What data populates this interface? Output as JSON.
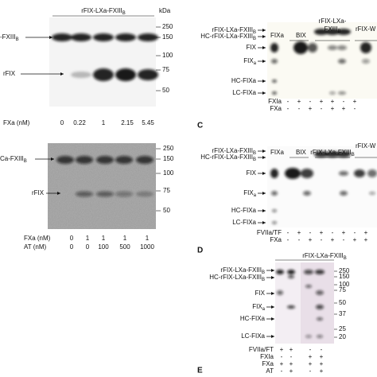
{
  "panel_a": {
    "title": {
      "text": "rFIX-LXa-FXIII",
      "sub": "B"
    },
    "unit": "kDa",
    "markers": [
      "250",
      "150",
      "100",
      "75",
      "50"
    ],
    "bands": [
      {
        "text": "-FXIII",
        "sub": "B"
      },
      {
        "text": "rFIX"
      }
    ],
    "rows": [
      {
        "label": "FXa (nM)",
        "values": [
          "0",
          "0.22",
          "1",
          "2.15",
          "5.45"
        ]
      }
    ]
  },
  "panel_b": {
    "markers": [
      "250",
      "150",
      "100",
      "75",
      "50"
    ],
    "bands": [
      {
        "text": "Ca-FXIII",
        "sub": "B"
      },
      {
        "text": "rFIX"
      }
    ],
    "rows": [
      {
        "label": "FXa (nM)",
        "values": [
          "0",
          "1",
          "1",
          "1",
          "1"
        ]
      },
      {
        "label": "AT (nM)",
        "values": [
          "0",
          "0",
          "100",
          "500",
          "1000"
        ]
      }
    ]
  },
  "panel_c": {
    "columns": [
      [
        {
          "text": "FIXa"
        }
      ],
      [
        {
          "text": "BIX"
        }
      ],
      [
        {
          "text": "rFIX-LXa-"
        },
        {
          "text": "FXIII",
          "sub": "B"
        }
      ],
      [
        {
          "text": "rFIX-W"
        }
      ]
    ],
    "bands": [
      {
        "text": "rFIX-LXa-FXIII",
        "sub": "B"
      },
      {
        "text": "HC-rFIX-LXa-FXIII",
        "sub": "B"
      },
      {
        "text": "FIX"
      },
      {
        "text": "FIX",
        "sub": "a"
      },
      {
        "text": "HC-FIXa"
      },
      {
        "text": "LC-FIXa"
      }
    ],
    "rows": [
      {
        "label": "FXIa",
        "values": [
          "-",
          "+",
          "-",
          "+",
          "+",
          "-",
          "+"
        ]
      },
      {
        "label": "FXa",
        "values": [
          "-",
          "-",
          "+",
          "-",
          "+",
          "+",
          "-"
        ]
      }
    ]
  },
  "panel_d": {
    "columns": [
      [
        {
          "text": "FIXa"
        }
      ],
      [
        {
          "text": "BIX"
        }
      ],
      [
        {
          "text": "rFIX-LXa-FXIII",
          "sub": "B"
        }
      ],
      [
        {
          "text": "rFIX-W"
        }
      ]
    ],
    "bands": [
      {
        "text": "rFIX-LXa-FXIII",
        "sub": "B"
      },
      {
        "text": "HC-rFIX-LXa-FXIII",
        "sub": "B"
      },
      {
        "text": "FIX"
      },
      {
        "text": "FIX",
        "sub": "a"
      },
      {
        "text": "HC-FIXa"
      },
      {
        "text": "LC-FIXa"
      }
    ],
    "rows": [
      {
        "label": "FVIIa/TF",
        "values": [
          "-",
          "+",
          "-",
          "+",
          "-",
          "+",
          "-",
          "+"
        ]
      },
      {
        "label": "FXa",
        "values": [
          "-",
          "-",
          "+",
          "-",
          "+",
          "-",
          "+",
          "+"
        ]
      }
    ]
  },
  "panel_e": {
    "title": {
      "text": "rFIX-LXa-FXIII",
      "sub": "B"
    },
    "markers": [
      "250",
      "150",
      "100",
      "75",
      "50",
      "37",
      "25",
      "20"
    ],
    "bands": [
      {
        "text": "rFIX-LXa-FXIII",
        "sub": "B"
      },
      {
        "text": "HC-rFIX-LXa-FXIII",
        "sub": "B"
      },
      {
        "text": "FIX"
      },
      {
        "text": "FIX",
        "sub": "a"
      },
      {
        "text": "HC-FIXa"
      },
      {
        "text": "LC-FIXa"
      }
    ],
    "rows": [
      {
        "label": "FVIIa/FT",
        "values": [
          "+",
          "+",
          "-",
          "-"
        ]
      },
      {
        "label": "FXIa",
        "values": [
          "-",
          "-",
          "+",
          "+"
        ]
      },
      {
        "label": "FXa",
        "values": [
          "+",
          "+",
          "+",
          "+"
        ]
      },
      {
        "label": "AT",
        "values": [
          "-",
          "+",
          "-",
          "+"
        ]
      }
    ]
  },
  "letters": [
    "C",
    "D",
    "E"
  ]
}
